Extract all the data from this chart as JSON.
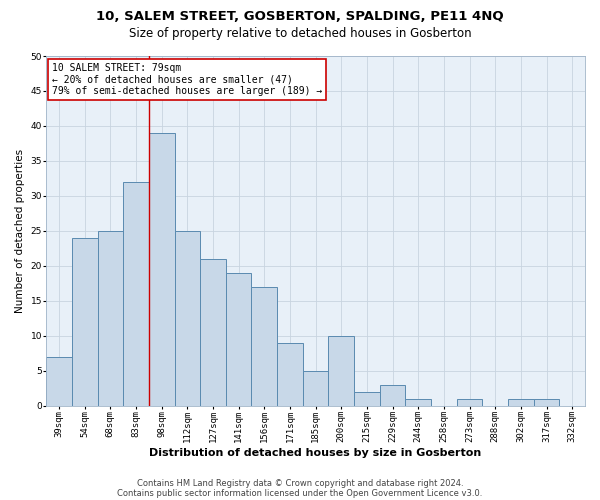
{
  "title1": "10, SALEM STREET, GOSBERTON, SPALDING, PE11 4NQ",
  "title2": "Size of property relative to detached houses in Gosberton",
  "xlabel": "Distribution of detached houses by size in Gosberton",
  "ylabel": "Number of detached properties",
  "categories": [
    "39sqm",
    "54sqm",
    "68sqm",
    "83sqm",
    "98sqm",
    "112sqm",
    "127sqm",
    "141sqm",
    "156sqm",
    "171sqm",
    "185sqm",
    "200sqm",
    "215sqm",
    "229sqm",
    "244sqm",
    "258sqm",
    "273sqm",
    "288sqm",
    "302sqm",
    "317sqm",
    "332sqm"
  ],
  "values": [
    7,
    24,
    25,
    32,
    39,
    25,
    21,
    19,
    17,
    9,
    5,
    10,
    2,
    3,
    1,
    0,
    1,
    0,
    1,
    1,
    0
  ],
  "bar_color": "#c8d8e8",
  "bar_edge_color": "#5a8ab0",
  "grid_color": "#c8d4e0",
  "background_color": "#e8f0f8",
  "vline_x": 3.5,
  "vline_color": "#cc0000",
  "annotation_text": "10 SALEM STREET: 79sqm\n← 20% of detached houses are smaller (47)\n79% of semi-detached houses are larger (189) →",
  "annotation_box_color": "#ffffff",
  "annotation_box_edge": "#cc0000",
  "footnote1": "Contains HM Land Registry data © Crown copyright and database right 2024.",
  "footnote2": "Contains public sector information licensed under the Open Government Licence v3.0.",
  "ylim": [
    0,
    50
  ],
  "yticks": [
    0,
    5,
    10,
    15,
    20,
    25,
    30,
    35,
    40,
    45,
    50
  ],
  "title1_fontsize": 9.5,
  "title2_fontsize": 8.5,
  "xlabel_fontsize": 8,
  "ylabel_fontsize": 7.5,
  "tick_fontsize": 6.5,
  "annot_fontsize": 7,
  "footnote_fontsize": 6
}
